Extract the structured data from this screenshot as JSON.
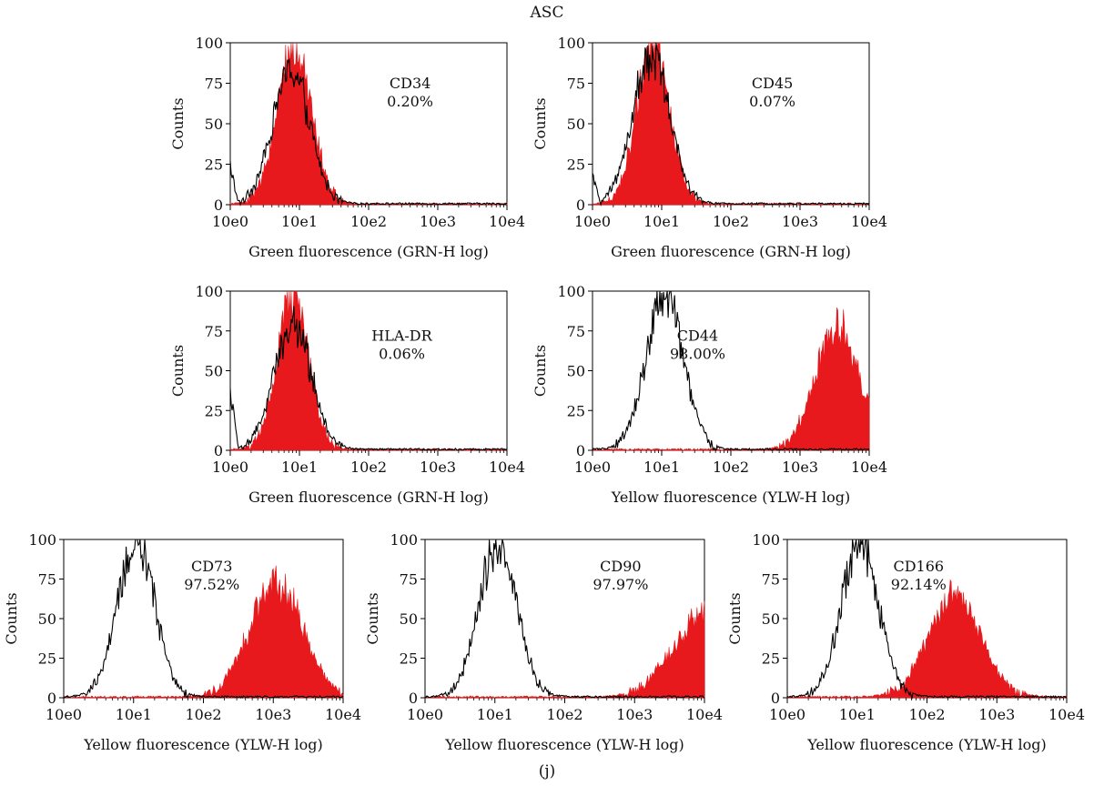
{
  "figure_title": "ASC",
  "figure_caption": "(j)",
  "colors": {
    "positive": "#e8191c",
    "control": "#000000",
    "axis": "#000000"
  },
  "chart_data": [
    {
      "type": "area",
      "marker": "CD34",
      "percent": "0.20%",
      "xlabel": "Green fluorescence (GRN-H log)",
      "ylabel": "Counts",
      "x_scale": "log",
      "xlim": [
        1,
        10000
      ],
      "ylim": [
        0,
        100
      ],
      "xtick_labels": [
        "10e0",
        "10e1",
        "10e2",
        "10e3",
        "10e4"
      ],
      "ytick_labels": [
        "0",
        "25",
        "50",
        "75",
        "100"
      ],
      "series": [
        {
          "role": "control",
          "style": "black outline",
          "peak_x": 7.5,
          "peak_y": 85,
          "spread_decades": 0.27,
          "low_end_y": 30
        },
        {
          "role": "positive",
          "style": "red filled",
          "peak_x": 8.5,
          "peak_y": 100,
          "spread_decades": 0.25
        }
      ]
    },
    {
      "type": "area",
      "marker": "CD45",
      "percent": "0.07%",
      "xlabel": "Green fluorescence (GRN-H log)",
      "ylabel": "Counts",
      "x_scale": "log",
      "xlim": [
        1,
        10000
      ],
      "ylim": [
        0,
        100
      ],
      "xtick_labels": [
        "10e0",
        "10e1",
        "10e2",
        "10e3",
        "10e4"
      ],
      "ytick_labels": [
        "0",
        "25",
        "50",
        "75",
        "100"
      ],
      "series": [
        {
          "role": "control",
          "style": "black outline",
          "peak_x": 7,
          "peak_y": 95,
          "spread_decades": 0.27,
          "low_end_y": 22
        },
        {
          "role": "positive",
          "style": "red filled",
          "peak_x": 7.5,
          "peak_y": 100,
          "spread_decades": 0.24
        }
      ]
    },
    {
      "type": "area",
      "marker": "HLA-DR",
      "percent": "0.06%",
      "xlabel": "Green fluorescence (GRN-H log)",
      "ylabel": "Counts",
      "x_scale": "log",
      "xlim": [
        1,
        10000
      ],
      "ylim": [
        0,
        100
      ],
      "xtick_labels": [
        "10e0",
        "10e1",
        "10e2",
        "10e3",
        "10e4"
      ],
      "ytick_labels": [
        "0",
        "25",
        "50",
        "75",
        "100"
      ],
      "series": [
        {
          "role": "control",
          "style": "black outline",
          "peak_x": 8,
          "peak_y": 82,
          "spread_decades": 0.27,
          "low_end_y": 45
        },
        {
          "role": "positive",
          "style": "red filled",
          "peak_x": 8,
          "peak_y": 100,
          "spread_decades": 0.23
        }
      ]
    },
    {
      "type": "area",
      "marker": "CD44",
      "percent": "98.00%",
      "xlabel": "Yellow fluorescence (YLW-H log)",
      "ylabel": "Counts",
      "x_scale": "log",
      "xlim": [
        1,
        10000
      ],
      "ylim": [
        0,
        100
      ],
      "xtick_labels": [
        "10e0",
        "10e1",
        "10e2",
        "10e3",
        "10e4"
      ],
      "ytick_labels": [
        "0",
        "25",
        "50",
        "75",
        "100"
      ],
      "series": [
        {
          "role": "control",
          "style": "black outline",
          "peak_x": 11,
          "peak_y": 100,
          "spread_decades": 0.27
        },
        {
          "role": "positive",
          "style": "red filled",
          "peak_x": 3500,
          "peak_y": 80,
          "spread_decades": 0.32,
          "right_edge_y": 30
        }
      ]
    },
    {
      "type": "area",
      "marker": "CD73",
      "percent": "97.52%",
      "xlabel": "Yellow fluorescence (YLW-H log)",
      "ylabel": "Counts",
      "x_scale": "log",
      "xlim": [
        1,
        10000
      ],
      "ylim": [
        0,
        100
      ],
      "xtick_labels": [
        "10e0",
        "10e1",
        "10e2",
        "10e3",
        "10e4"
      ],
      "ytick_labels": [
        "0",
        "25",
        "50",
        "75",
        "100"
      ],
      "series": [
        {
          "role": "control",
          "style": "black outline",
          "peak_x": 11,
          "peak_y": 100,
          "spread_decades": 0.27
        },
        {
          "role": "positive",
          "style": "red filled",
          "peak_x": 1100,
          "peak_y": 75,
          "spread_decades": 0.38
        }
      ]
    },
    {
      "type": "area",
      "marker": "CD90",
      "percent": "97.97%",
      "xlabel": "Yellow fluorescence (YLW-H log)",
      "ylabel": "Counts",
      "x_scale": "log",
      "xlim": [
        1,
        10000
      ],
      "ylim": [
        0,
        100
      ],
      "xtick_labels": [
        "10e0",
        "10e1",
        "10e2",
        "10e3",
        "10e4"
      ],
      "ytick_labels": [
        "0",
        "25",
        "50",
        "75",
        "100"
      ],
      "series": [
        {
          "role": "control",
          "style": "black outline",
          "peak_x": 11,
          "peak_y": 100,
          "spread_decades": 0.27
        },
        {
          "role": "positive",
          "style": "red filled",
          "peak_x": 10000,
          "peak_y": 55,
          "spread_decades": 0.45
        }
      ]
    },
    {
      "type": "area",
      "marker": "CD166",
      "percent": "92.14%",
      "xlabel": "Yellow fluorescence (YLW-H log)",
      "ylabel": "Counts",
      "x_scale": "log",
      "xlim": [
        1,
        10000
      ],
      "ylim": [
        0,
        100
      ],
      "xtick_labels": [
        "10e0",
        "10e1",
        "10e2",
        "10e3",
        "10e4"
      ],
      "ytick_labels": [
        "0",
        "25",
        "50",
        "75",
        "100"
      ],
      "series": [
        {
          "role": "control",
          "style": "black outline",
          "peak_x": 11,
          "peak_y": 100,
          "spread_decades": 0.27
        },
        {
          "role": "positive",
          "style": "red filled",
          "peak_x": 250,
          "peak_y": 65,
          "spread_decades": 0.38
        }
      ]
    }
  ]
}
